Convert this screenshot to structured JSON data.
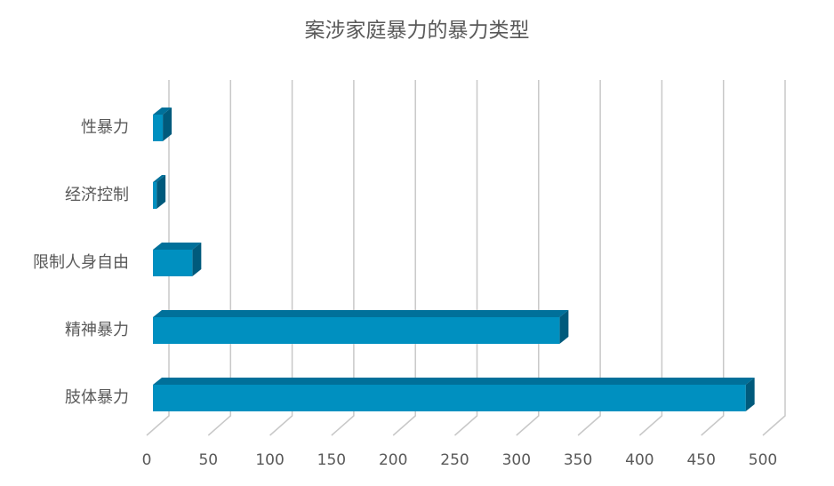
{
  "chart_data": {
    "type": "bar",
    "title": "案涉家庭暴力的暴力类型",
    "categories": [
      "性暴力",
      "经济控制",
      "限制人身自由",
      "精神暴力",
      "肢体暴力"
    ],
    "values": [
      8,
      3,
      32,
      330,
      481
    ],
    "color": "#0090c0",
    "xlim": [
      0,
      500
    ],
    "xticks": [
      0,
      50,
      100,
      150,
      200,
      250,
      300,
      350,
      400,
      450,
      500
    ],
    "grid": true
  }
}
